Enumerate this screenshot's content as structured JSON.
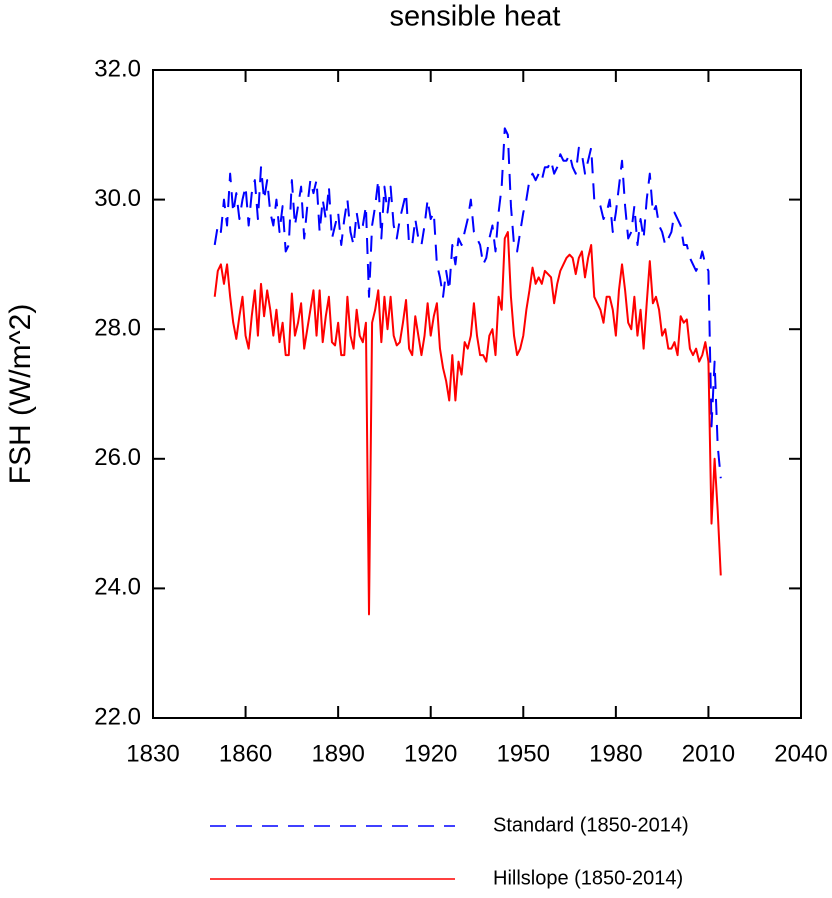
{
  "chart_data": {
    "type": "line",
    "title": "sensible heat",
    "y_label": "FSH  (W/m^2)",
    "x": [
      1850,
      1851,
      1852,
      1853,
      1854,
      1855,
      1856,
      1857,
      1858,
      1859,
      1860,
      1861,
      1862,
      1863,
      1864,
      1865,
      1866,
      1867,
      1868,
      1869,
      1870,
      1871,
      1872,
      1873,
      1874,
      1875,
      1876,
      1877,
      1878,
      1879,
      1880,
      1881,
      1882,
      1883,
      1884,
      1885,
      1886,
      1887,
      1888,
      1889,
      1890,
      1891,
      1892,
      1893,
      1894,
      1895,
      1896,
      1897,
      1898,
      1899,
      1900,
      1901,
      1902,
      1903,
      1904,
      1905,
      1906,
      1907,
      1908,
      1909,
      1910,
      1911,
      1912,
      1913,
      1914,
      1915,
      1916,
      1917,
      1918,
      1919,
      1920,
      1921,
      1922,
      1923,
      1924,
      1925,
      1926,
      1927,
      1928,
      1929,
      1930,
      1931,
      1932,
      1933,
      1934,
      1935,
      1936,
      1937,
      1938,
      1939,
      1940,
      1941,
      1942,
      1943,
      1944,
      1945,
      1946,
      1947,
      1948,
      1949,
      1950,
      1951,
      1952,
      1953,
      1954,
      1955,
      1956,
      1957,
      1958,
      1959,
      1960,
      1961,
      1962,
      1963,
      1964,
      1965,
      1966,
      1967,
      1968,
      1969,
      1970,
      1971,
      1972,
      1973,
      1974,
      1975,
      1976,
      1977,
      1978,
      1979,
      1980,
      1981,
      1982,
      1983,
      1984,
      1985,
      1986,
      1987,
      1988,
      1989,
      1990,
      1991,
      1992,
      1993,
      1994,
      1995,
      1996,
      1997,
      1998,
      1999,
      2000,
      2001,
      2002,
      2003,
      2004,
      2005,
      2006,
      2007,
      2008,
      2009,
      2010,
      2011,
      2012,
      2013,
      2014
    ],
    "series": [
      {
        "name": "Standard (1850-2014)",
        "color": "#0000ff",
        "line_style": "dashed",
        "values": [
          29.3,
          29.6,
          29.5,
          30.0,
          29.6,
          30.4,
          29.8,
          30.1,
          29.7,
          30.0,
          30.2,
          29.6,
          30.1,
          30.3,
          29.7,
          30.5,
          30.0,
          30.3,
          29.8,
          29.6,
          30.0,
          29.5,
          29.9,
          29.2,
          29.3,
          30.3,
          29.6,
          29.9,
          30.2,
          29.4,
          29.9,
          30.3,
          30.1,
          30.3,
          29.5,
          30.0,
          29.7,
          30.2,
          29.4,
          29.6,
          29.8,
          29.3,
          29.7,
          30.0,
          29.5,
          29.3,
          29.8,
          29.5,
          29.6,
          29.9,
          28.5,
          29.6,
          29.9,
          30.3,
          29.4,
          30.2,
          29.8,
          30.2,
          29.6,
          29.4,
          29.7,
          29.9,
          30.1,
          29.3,
          29.3,
          29.7,
          29.4,
          29.3,
          29.6,
          30.0,
          29.7,
          29.8,
          29.0,
          28.8,
          28.5,
          28.9,
          28.6,
          29.3,
          29.0,
          29.4,
          29.3,
          29.5,
          29.7,
          30.0,
          29.5,
          29.4,
          29.3,
          29.0,
          29.1,
          29.4,
          29.6,
          29.2,
          29.8,
          30.2,
          31.1,
          31.0,
          29.9,
          29.3,
          29.2,
          29.5,
          29.8,
          30.0,
          30.3,
          30.4,
          30.3,
          30.4,
          30.3,
          30.5,
          30.5,
          30.6,
          30.4,
          30.5,
          30.7,
          30.6,
          30.6,
          30.7,
          30.5,
          30.4,
          30.8,
          30.7,
          30.4,
          30.6,
          30.8,
          30.0,
          30.0,
          29.9,
          29.7,
          29.8,
          30.0,
          29.5,
          29.8,
          30.2,
          30.6,
          29.9,
          29.4,
          29.5,
          29.9,
          29.3,
          29.7,
          29.4,
          30.0,
          30.4,
          29.8,
          29.9,
          29.6,
          29.5,
          29.3,
          29.4,
          29.5,
          29.8,
          29.7,
          29.6,
          29.3,
          29.3,
          29.1,
          29.0,
          28.9,
          29.0,
          29.2,
          29.0,
          28.9,
          26.5,
          27.5,
          26.2,
          25.7
        ]
      },
      {
        "name": "Hillslope (1850-2014)",
        "color": "#ff0000",
        "line_style": "solid",
        "values": [
          28.5,
          28.9,
          29.0,
          28.7,
          29.0,
          28.5,
          28.1,
          27.85,
          28.2,
          28.5,
          27.9,
          27.7,
          28.2,
          28.6,
          27.9,
          28.7,
          28.2,
          28.6,
          28.3,
          27.9,
          28.3,
          27.8,
          28.1,
          27.6,
          27.6,
          28.55,
          27.9,
          28.1,
          28.4,
          27.7,
          28.0,
          28.3,
          28.6,
          27.9,
          28.6,
          27.8,
          28.2,
          28.5,
          27.8,
          27.75,
          28.1,
          27.6,
          27.6,
          28.5,
          27.9,
          27.7,
          28.3,
          27.9,
          27.8,
          28.1,
          23.6,
          28.1,
          28.3,
          28.6,
          27.8,
          28.5,
          28.0,
          28.5,
          27.9,
          27.75,
          27.8,
          28.1,
          28.45,
          27.7,
          27.6,
          28.2,
          27.9,
          27.6,
          27.9,
          28.4,
          27.9,
          28.2,
          28.4,
          27.7,
          27.4,
          27.2,
          26.9,
          27.6,
          26.9,
          27.5,
          27.3,
          27.8,
          27.7,
          27.9,
          28.4,
          27.9,
          27.6,
          27.6,
          27.5,
          27.9,
          28.0,
          27.6,
          28.5,
          28.3,
          29.4,
          29.5,
          28.5,
          27.9,
          27.6,
          27.7,
          27.9,
          28.3,
          28.6,
          28.95,
          28.7,
          28.8,
          28.7,
          28.9,
          28.85,
          28.8,
          28.4,
          28.7,
          28.9,
          29.0,
          29.1,
          29.15,
          29.1,
          28.85,
          29.1,
          29.2,
          28.8,
          29.1,
          29.3,
          28.5,
          28.4,
          28.3,
          28.1,
          28.5,
          28.5,
          28.3,
          27.9,
          28.6,
          29.0,
          28.6,
          28.1,
          28.0,
          28.5,
          27.9,
          28.3,
          27.7,
          28.4,
          29.05,
          28.4,
          28.5,
          28.3,
          27.9,
          28.0,
          27.7,
          27.7,
          27.8,
          27.6,
          28.2,
          28.1,
          28.15,
          27.7,
          27.6,
          27.7,
          27.5,
          27.6,
          27.8,
          27.5,
          25.0,
          26.0,
          25.2,
          24.2
        ]
      }
    ],
    "xlim": [
      1830,
      2040
    ],
    "xticks": [
      1830,
      1860,
      1890,
      1920,
      1950,
      1980,
      2010,
      2040
    ],
    "ylim": [
      22,
      32
    ],
    "yticks": [
      {
        "value": 22,
        "label": "22.0"
      },
      {
        "value": 24,
        "label": "24.0"
      },
      {
        "value": 26,
        "label": "26.0"
      },
      {
        "value": 28,
        "label": "28.0"
      },
      {
        "value": 30,
        "label": "30.0"
      },
      {
        "value": 32,
        "label": "32.0"
      }
    ],
    "legend": "bottom"
  }
}
